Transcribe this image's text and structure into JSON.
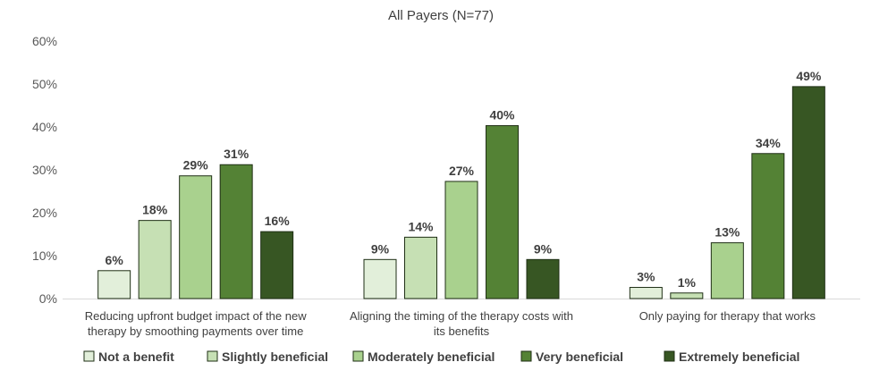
{
  "chart_data": {
    "type": "bar",
    "title": "All Payers (N=77)",
    "xlabel": "",
    "ylabel": "",
    "ylim": [
      0,
      60
    ],
    "yticks": [
      "0%",
      "10%",
      "20%",
      "30%",
      "40%",
      "50%",
      "60%"
    ],
    "grid": false,
    "legend_position": "bottom",
    "categories": [
      [
        "Reducing upfront budget impact of the new",
        "therapy by smoothing payments over time"
      ],
      [
        "Aligning the timing of the therapy costs with",
        "its benefits"
      ],
      [
        "Only paying for therapy that works"
      ]
    ],
    "series": [
      {
        "name": "Not a benefit",
        "color": "#e2efda",
        "values": [
          6.5,
          9.1,
          2.6
        ],
        "labels": [
          "6%",
          "9%",
          "3%"
        ]
      },
      {
        "name": "Slightly beneficial",
        "color": "#c6e0b4",
        "values": [
          18.2,
          14.3,
          1.3
        ],
        "labels": [
          "18%",
          "14%",
          "1%"
        ]
      },
      {
        "name": "Moderately beneficial",
        "color": "#a9d18e",
        "values": [
          28.6,
          27.3,
          13.0
        ],
        "labels": [
          "29%",
          "27%",
          "13%"
        ]
      },
      {
        "name": "Very beneficial",
        "color": "#548235",
        "values": [
          31.2,
          40.3,
          33.8
        ],
        "labels": [
          "31%",
          "40%",
          "34%"
        ]
      },
      {
        "name": "Extremely beneficial",
        "color": "#375623",
        "values": [
          15.6,
          9.1,
          49.4
        ],
        "labels": [
          "16%",
          "9%",
          "49%"
        ]
      }
    ]
  }
}
